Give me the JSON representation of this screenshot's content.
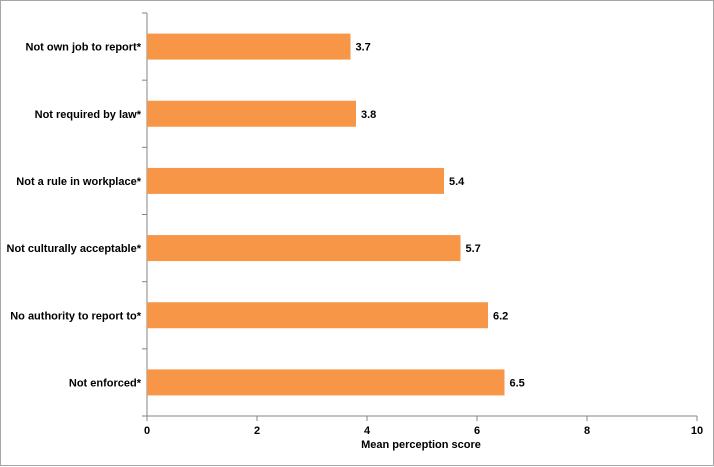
{
  "chart_data": {
    "type": "bar",
    "orientation": "horizontal",
    "title": "",
    "xlabel": "Mean perception score",
    "ylabel": "",
    "xlim": [
      0,
      10
    ],
    "x_ticks": [
      0,
      2,
      4,
      6,
      8,
      10
    ],
    "grid": false,
    "legend": "none",
    "categories": [
      "Not own job to report*",
      "Not required by law*",
      "Not a rule in workplace*",
      "Not culturally acceptable*",
      "No authority to report to*",
      "Not enforced*"
    ],
    "values": [
      3.7,
      3.8,
      5.4,
      5.7,
      6.2,
      6.5
    ],
    "data_labels": [
      "3.7",
      "3.8",
      "5.4",
      "5.7",
      "6.2",
      "6.5"
    ],
    "bar_color": "#f79646",
    "axis_color": "#868686"
  }
}
